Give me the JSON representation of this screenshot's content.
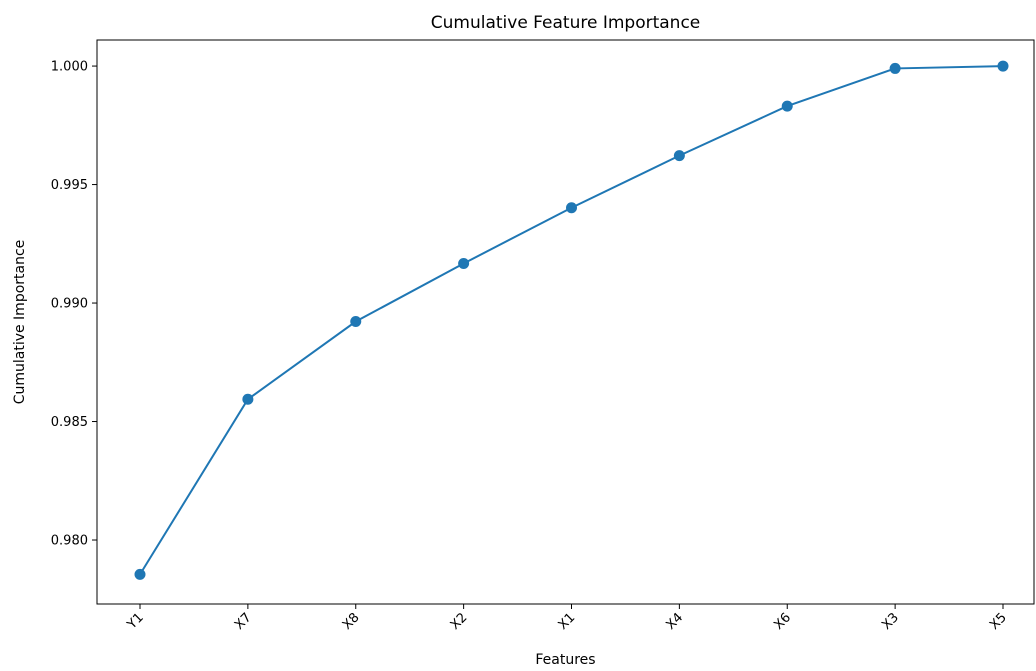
{
  "chart_data": {
    "type": "line",
    "title": "Cumulative Feature Importance",
    "xlabel": "Features",
    "ylabel": "Cumulative Importance",
    "categories": [
      "Y1",
      "X7",
      "X8",
      "X2",
      "X1",
      "X4",
      "X6",
      "X3",
      "X5"
    ],
    "values": [
      0.97855,
      0.98594,
      0.98922,
      0.99167,
      0.99402,
      0.99622,
      0.99831,
      0.9999,
      1.0
    ],
    "yticks": [
      "0.980",
      "0.985",
      "0.990",
      "0.995",
      "1.000"
    ],
    "ylim": [
      0.9773,
      1.0011
    ],
    "grid": false,
    "legend": "none",
    "line_color": "#1f77b4",
    "marker": "circle"
  }
}
